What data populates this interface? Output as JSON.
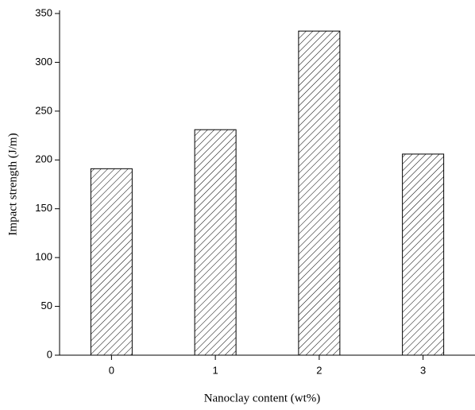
{
  "chart_data": {
    "type": "bar",
    "x_label": "Nanoclay content (wt%)",
    "y_label": "Impact strength (J/m)",
    "categories": [
      "0",
      "1",
      "2",
      "3"
    ],
    "values": [
      191,
      231,
      332,
      206
    ],
    "color": "#000000",
    "ylim": [
      0,
      350
    ],
    "yticks": [
      0,
      50,
      100,
      150,
      200,
      250,
      300,
      350
    ],
    "grid": false
  }
}
